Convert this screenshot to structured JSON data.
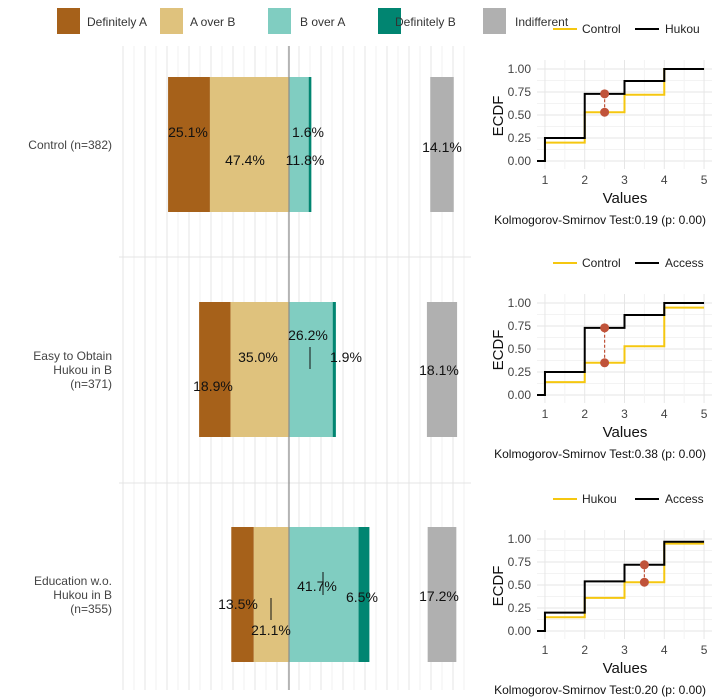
{
  "chart_data": [
    {
      "type": "bar",
      "orientation": "horizontal-diverging-stacked",
      "legend": {
        "placement": "top",
        "entries": [
          {
            "label": "Definitely A",
            "color": "#A6611A"
          },
          {
            "label": "A over B",
            "color": "#DFC27D"
          },
          {
            "label": "B over A",
            "color": "#80CDC1"
          },
          {
            "label": "Definitely B",
            "color": "#018571"
          },
          {
            "label": "Indifferent",
            "color": "#B0B0B0"
          }
        ]
      },
      "categories": [
        "Control (n=382)",
        "Easy to Obtain Hukou in B (n=371)",
        "Education w.o. Hukou in B (n=355)"
      ],
      "category_lines": [
        [
          "Control (n=382)"
        ],
        [
          "Easy to Obtain",
          "Hukou in B",
          "(n=371)"
        ],
        [
          "Education w.o.",
          "Hukou in B",
          "(n=355)"
        ]
      ],
      "series": [
        {
          "name": "Definitely A",
          "values": [
            25.1,
            18.9,
            13.5
          ]
        },
        {
          "name": "A over B",
          "values": [
            47.4,
            35.0,
            21.1
          ]
        },
        {
          "name": "B over A",
          "values": [
            11.8,
            26.2,
            41.7
          ]
        },
        {
          "name": "Definitely B",
          "values": [
            1.6,
            1.9,
            6.5
          ]
        },
        {
          "name": "Indifferent",
          "values": [
            14.1,
            18.1,
            17.2
          ]
        }
      ],
      "labels": [
        [
          "25.1%",
          "47.4%",
          "11.8%",
          "1.6%",
          "14.1%"
        ],
        [
          "18.9%",
          "35.0%",
          "26.2%",
          "1.9%",
          "18.1%"
        ],
        [
          "13.5%",
          "21.1%",
          "41.7%",
          "6.5%",
          "17.2%"
        ]
      ],
      "grid": true
    },
    {
      "type": "line",
      "step": true,
      "xlabel": "Values",
      "ylabel": "ECDF",
      "xlim": [
        1,
        5
      ],
      "ylim": [
        0,
        1
      ],
      "xticks": [
        "1",
        "2",
        "3",
        "4",
        "5"
      ],
      "yticks": [
        "0.00",
        "0.25",
        "0.50",
        "0.75",
        "1.00"
      ],
      "legend_position": "top",
      "panels": [
        {
          "series": [
            {
              "name": "Control",
              "color": "#F5C710",
              "y": [
                0.2,
                0.53,
                0.72,
                1.0
              ]
            },
            {
              "name": "Hukou",
              "color": "#000000",
              "y": [
                0.25,
                0.73,
                0.87,
                1.0
              ]
            }
          ],
          "ks_x": 2.5,
          "ks_y": [
            0.53,
            0.73
          ],
          "caption": "Kolmogorov-Smirnov Test:0.19 (p: 0.00)"
        },
        {
          "series": [
            {
              "name": "Control",
              "color": "#F5C710",
              "y": [
                0.14,
                0.35,
                0.53,
                0.95
              ]
            },
            {
              "name": "Access",
              "color": "#000000",
              "y": [
                0.25,
                0.73,
                0.87,
                1.0
              ]
            }
          ],
          "ks_x": 2.5,
          "ks_y": [
            0.35,
            0.73
          ],
          "caption": "Kolmogorov-Smirnov Test:0.38 (p: 0.00)"
        },
        {
          "series": [
            {
              "name": "Hukou",
              "color": "#F5C710",
              "y": [
                0.15,
                0.36,
                0.53,
                0.95
              ]
            },
            {
              "name": "Access",
              "color": "#000000",
              "y": [
                0.2,
                0.54,
                0.72,
                0.97
              ]
            }
          ],
          "ks_x": 3.5,
          "ks_y": [
            0.53,
            0.72
          ],
          "caption": "Kolmogorov-Smirnov Test:0.20 (p: 0.00)"
        }
      ]
    }
  ]
}
